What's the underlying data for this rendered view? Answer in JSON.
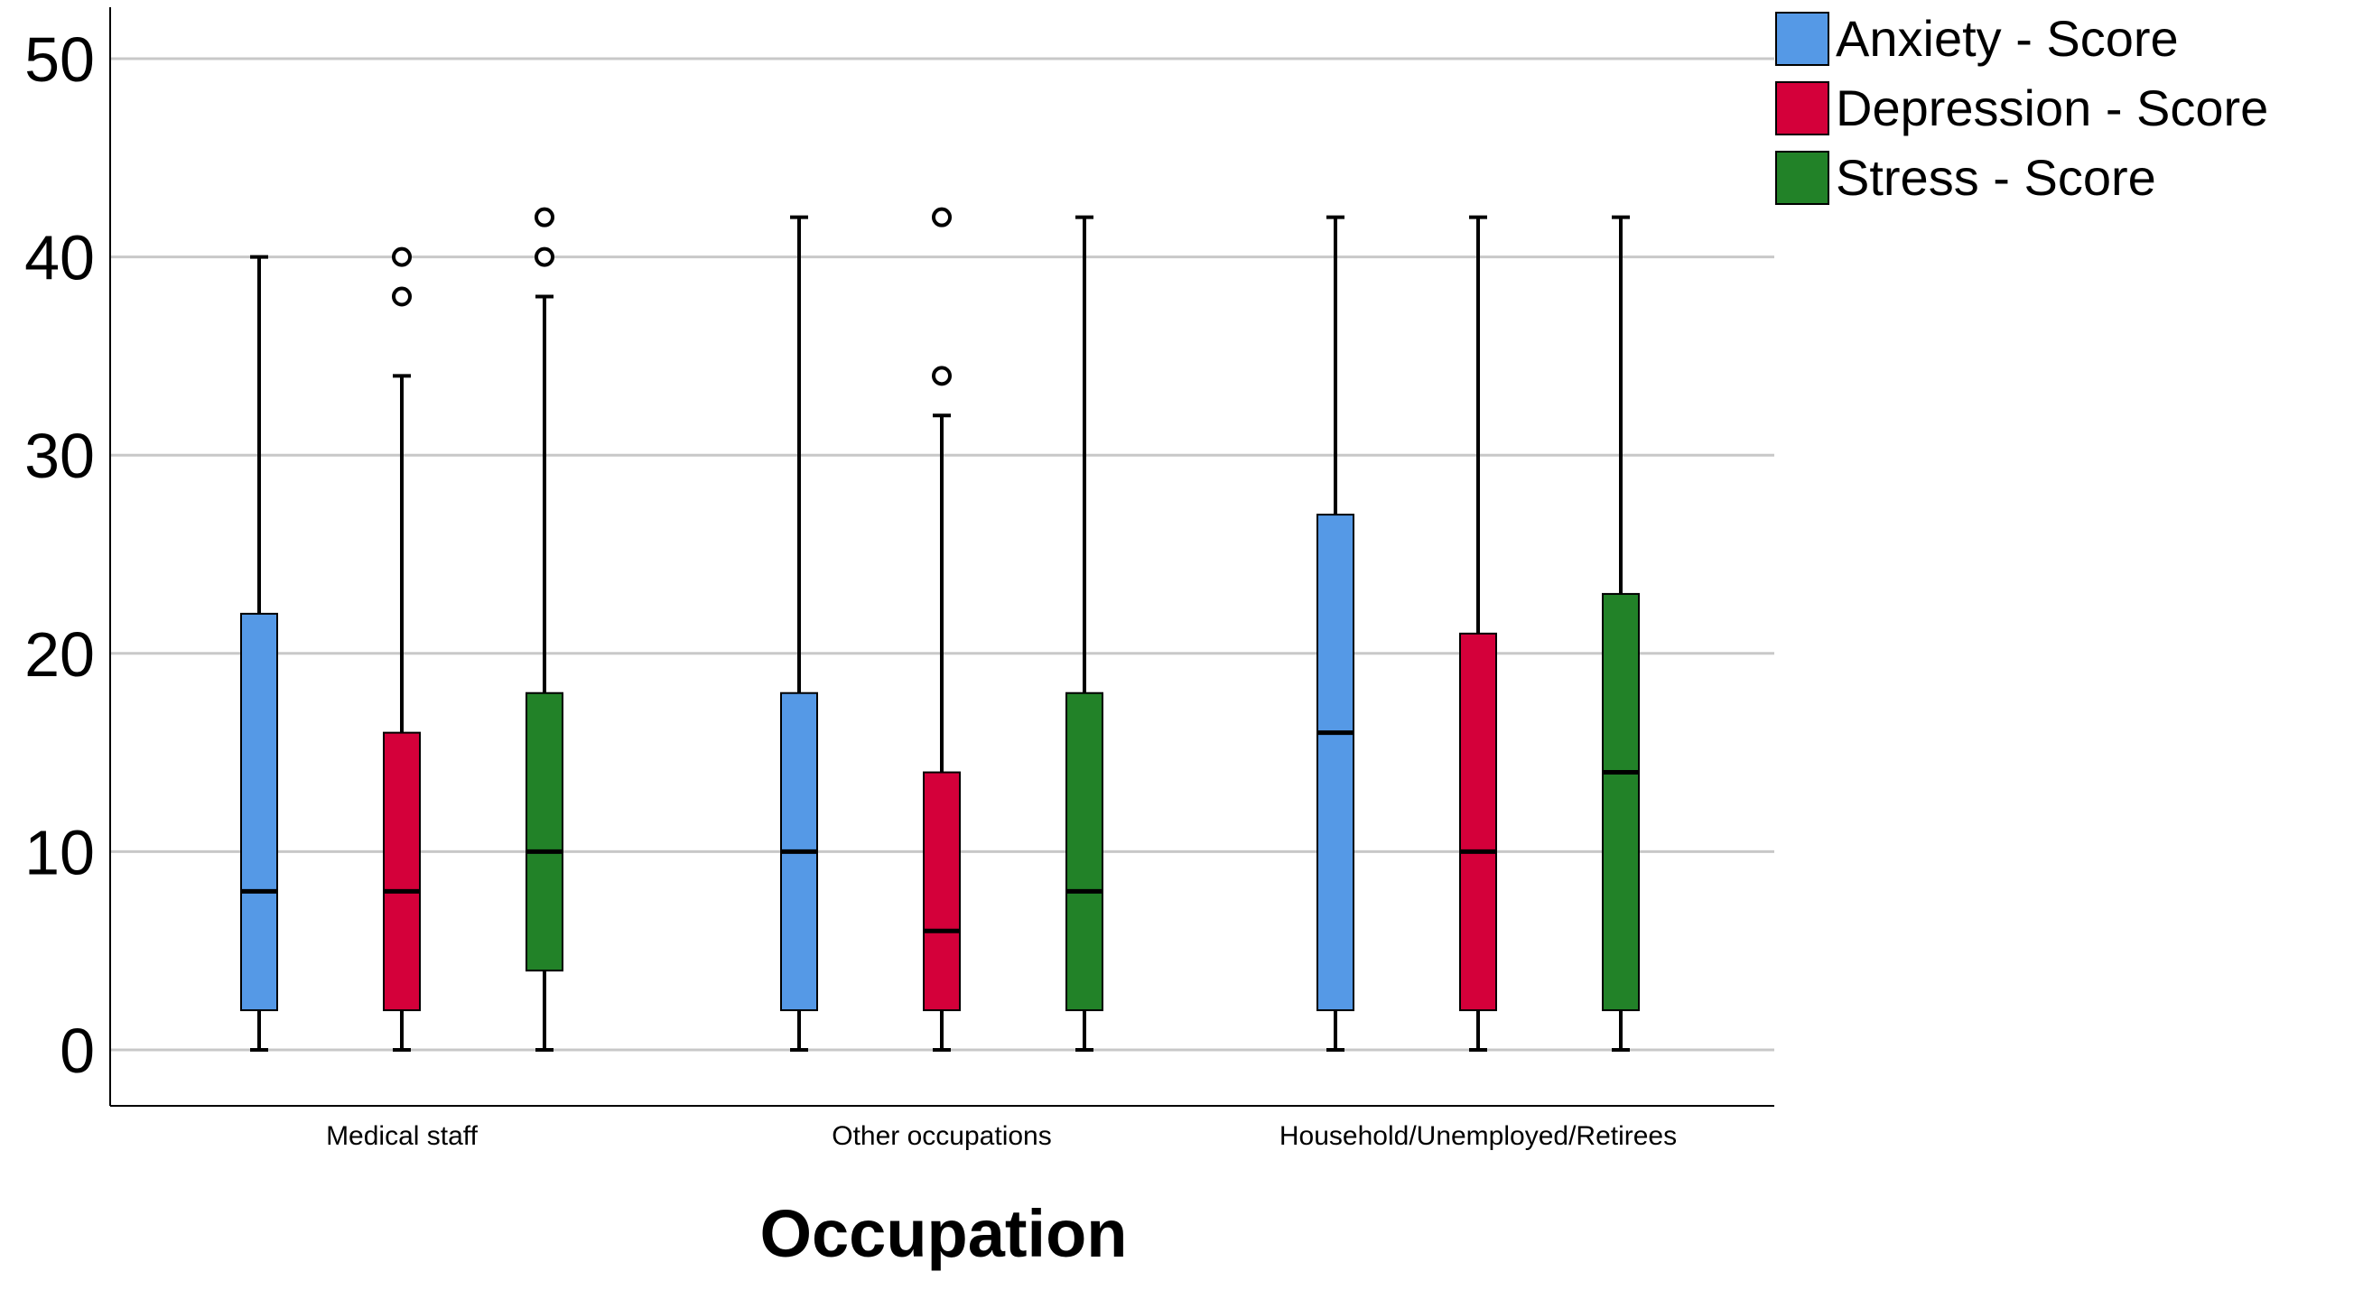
{
  "chart_data": {
    "type": "boxplot",
    "xlabel": "Occupation",
    "ylabel": "",
    "ylim": [
      0,
      50
    ],
    "yticks": [
      0,
      10,
      20,
      30,
      40,
      50
    ],
    "grid": true,
    "legend_position": "top-right",
    "categories": [
      "Medical staff",
      "Other occupations",
      "Household/Unemployed/Retirees"
    ],
    "series": [
      {
        "name": "Anxiety - Score",
        "color": "#5599e6",
        "boxes": [
          {
            "min": 0,
            "q1": 2,
            "median": 8,
            "q3": 22,
            "max": 40,
            "outliers": []
          },
          {
            "min": 0,
            "q1": 2,
            "median": 10,
            "q3": 18,
            "max": 42,
            "outliers": []
          },
          {
            "min": 0,
            "q1": 2,
            "median": 16,
            "q3": 27,
            "max": 42,
            "outliers": []
          }
        ]
      },
      {
        "name": "Depression - Score",
        "color": "#d4003a",
        "boxes": [
          {
            "min": 0,
            "q1": 2,
            "median": 8,
            "q3": 16,
            "max": 34,
            "outliers": [
              38,
              40
            ]
          },
          {
            "min": 0,
            "q1": 2,
            "median": 6,
            "q3": 14,
            "max": 32,
            "outliers": [
              34,
              42
            ]
          },
          {
            "min": 0,
            "q1": 2,
            "median": 10,
            "q3": 21,
            "max": 42,
            "outliers": []
          }
        ]
      },
      {
        "name": "Stress - Score",
        "color": "#228228",
        "boxes": [
          {
            "min": 0,
            "q1": 4,
            "median": 10,
            "q3": 18,
            "max": 38,
            "outliers": [
              40,
              42
            ]
          },
          {
            "min": 0,
            "q1": 2,
            "median": 8,
            "q3": 18,
            "max": 42,
            "outliers": []
          },
          {
            "min": 0,
            "q1": 2,
            "median": 14,
            "q3": 23,
            "max": 42,
            "outliers": []
          }
        ]
      }
    ]
  }
}
